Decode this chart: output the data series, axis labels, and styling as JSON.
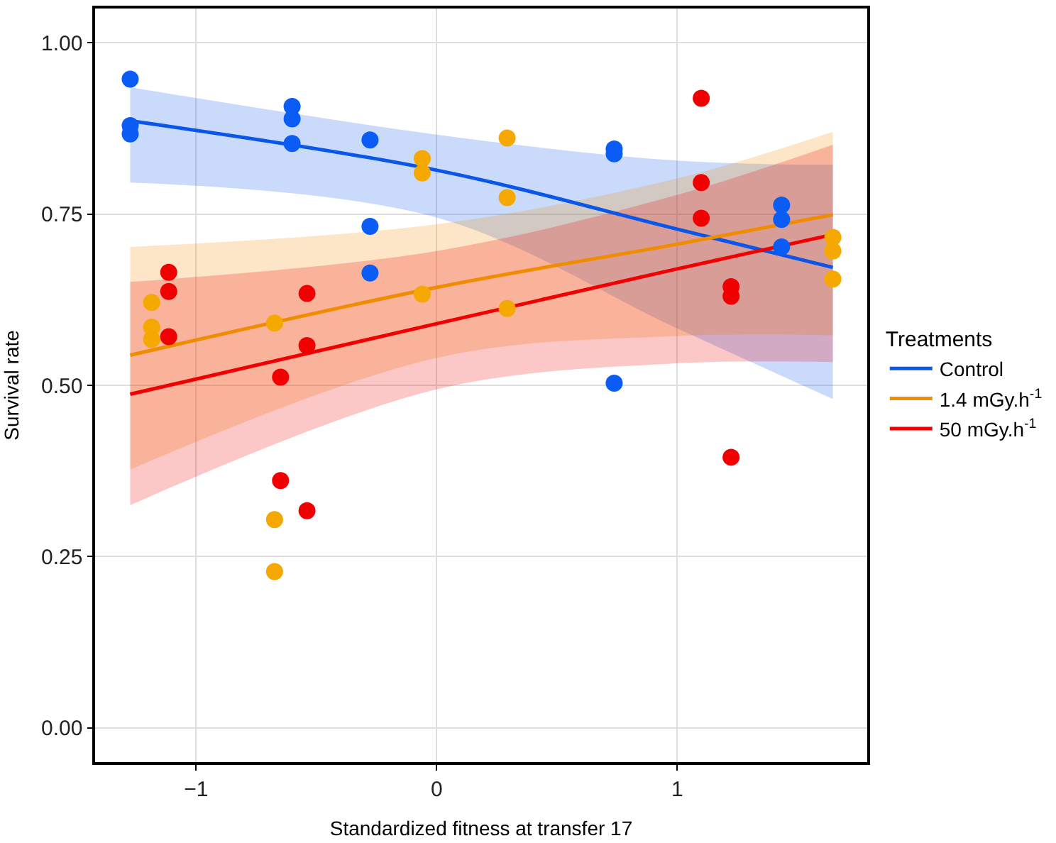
{
  "chart_data": {
    "type": "scatter",
    "xlabel": "Standardized fitness at transfer 17",
    "ylabel": "Survival rate",
    "legend_title": "Treatments",
    "legend": "right",
    "grid": true,
    "marker": "circle",
    "xlim": [
      -1.42,
      1.79
    ],
    "xticks": [
      {
        "value": -1,
        "label": "−1"
      },
      0,
      1
    ],
    "ylim": [
      -0.05,
      1.05
    ],
    "yticks": [
      {
        "value": 0,
        "label": "0.00"
      },
      {
        "value": 0.25,
        "label": "0.25"
      },
      {
        "value": 0.5,
        "label": "0.50"
      },
      {
        "value": 0.75,
        "label": "0.75"
      },
      {
        "value": 1,
        "label": "1.00"
      }
    ],
    "series": [
      {
        "type": "line",
        "marker": "none",
        "name": "Control",
        "color": "#0a56e8",
        "x": [
          -1.274,
          0,
          1,
          1.647
        ],
        "values": [
          0.886,
          0.814,
          0.728,
          0.672
        ],
        "lower": [
          0.796,
          0.745,
          0.583,
          0.48
        ],
        "upper": [
          0.935,
          0.866,
          0.828,
          0.822
        ]
      },
      {
        "type": "line",
        "marker": "none",
        "name": "1.4 mGy.h$^{-1}$",
        "color": "#f08c00",
        "x": [
          -1.274,
          0,
          1,
          1.647
        ],
        "values": [
          0.544,
          0.643,
          0.706,
          0.749
        ],
        "lower": [
          0.377,
          0.54,
          0.572,
          0.573
        ],
        "upper": [
          0.702,
          0.735,
          0.802,
          0.87
        ]
      },
      {
        "type": "line",
        "marker": "none",
        "name": "50 mGy.h$^{-1}$",
        "color": "#f00000",
        "x": [
          -1.274,
          0,
          1,
          1.647
        ],
        "values": [
          0.487,
          0.59,
          0.67,
          0.72
        ],
        "lower": [
          0.325,
          0.494,
          0.532,
          0.534
        ],
        "upper": [
          0.651,
          0.696,
          0.778,
          0.851
        ]
      },
      {
        "color": "#0a5cf5",
        "x": [
          -1.274,
          -1.274,
          -1.274,
          -0.601,
          -0.601,
          -0.601,
          -0.277,
          -0.277,
          -0.277,
          0.738,
          0.738,
          0.738,
          1.434,
          1.434,
          1.434
        ],
        "values": [
          0.947,
          0.879,
          0.867,
          0.907,
          0.889,
          0.853,
          0.858,
          0.732,
          0.664,
          0.845,
          0.838,
          0.503,
          0.763,
          0.742,
          0.702
        ]
      },
      {
        "color": "#f5a800",
        "x": [
          -1.185,
          -1.185,
          -1.185,
          -0.674,
          -0.674,
          -0.674,
          -0.06,
          -0.06,
          -0.06,
          0.293,
          0.293,
          0.293,
          1.647,
          1.647,
          1.647
        ],
        "values": [
          0.621,
          0.585,
          0.567,
          0.591,
          0.304,
          0.228,
          0.831,
          0.81,
          0.633,
          0.861,
          0.774,
          0.612,
          0.716,
          0.696,
          0.655
        ]
      },
      {
        "color": "#f00000",
        "x": [
          -1.114,
          -1.114,
          -1.114,
          -0.649,
          -0.649,
          -0.539,
          -0.539,
          -0.539,
          1.1,
          1.1,
          1.1,
          1.224,
          1.224,
          1.224
        ],
        "values": [
          0.665,
          0.637,
          0.571,
          0.512,
          0.361,
          0.634,
          0.558,
          0.317,
          0.919,
          0.796,
          0.744,
          0.644,
          0.63,
          0.395
        ]
      }
    ]
  }
}
